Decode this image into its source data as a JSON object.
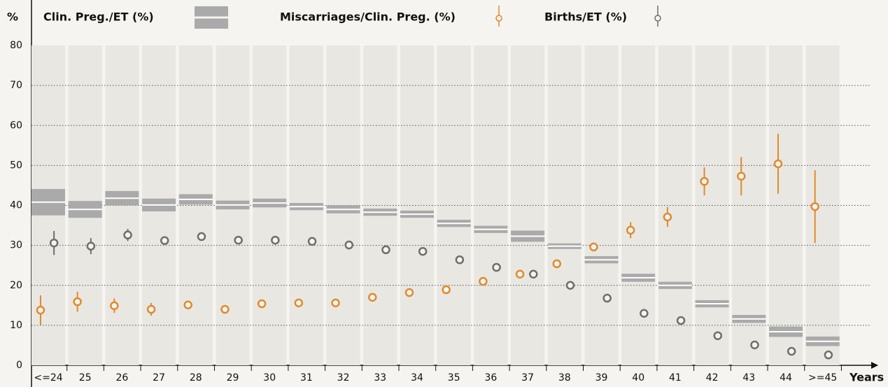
{
  "chart_data": {
    "type": "range",
    "y_label": "%",
    "x_label": "Years",
    "categories": [
      "<=24",
      "25",
      "26",
      "27",
      "28",
      "29",
      "30",
      "31",
      "32",
      "33",
      "34",
      "35",
      "36",
      "37",
      "38",
      "39",
      "40",
      "41",
      "42",
      "43",
      "44",
      ">=45"
    ],
    "ylim": [
      0,
      80
    ],
    "yticks": [
      0,
      10,
      20,
      30,
      40,
      50,
      60,
      70,
      80
    ],
    "grid": true,
    "series": [
      {
        "name": "Clin. Preg./ET (%)",
        "color": "#aaaaaa",
        "style": "box",
        "values": [
          40.8,
          39.0,
          41.8,
          40.1,
          41.5,
          40.1,
          40.6,
          39.7,
          39.0,
          38.3,
          37.8,
          35.5,
          34.0,
          32.3,
          29.8,
          26.4,
          21.9,
          20.0,
          15.4,
          11.6,
          8.4,
          6.0
        ],
        "errors": [
          3.3,
          2.1,
          1.8,
          1.6,
          1.3,
          1.1,
          1.1,
          0.9,
          1.0,
          0.9,
          0.9,
          0.9,
          0.9,
          1.4,
          0.7,
          0.9,
          1.0,
          0.9,
          0.9,
          1.0,
          1.3,
          1.2
        ]
      },
      {
        "name": "Miscarriages/Clin. Preg. (%)",
        "color": "#e08a2e",
        "style": "point",
        "offset": 0.27,
        "values": [
          13.8,
          15.9,
          14.9,
          14.0,
          15.1,
          14.0,
          15.4,
          15.6,
          15.6,
          17.0,
          18.2,
          18.9,
          21.0,
          22.8,
          25.4,
          29.6,
          33.8,
          37.1,
          46.0,
          47.3,
          50.4,
          39.7
        ],
        "errors": [
          3.7,
          2.5,
          1.8,
          1.6,
          1.0,
          0.7,
          0.5,
          0.5,
          0.5,
          0.5,
          0.5,
          0.5,
          0.6,
          0.7,
          1.0,
          1.0,
          2.0,
          2.5,
          3.5,
          4.8,
          7.5,
          9.1
        ]
      },
      {
        "name": "Births/ET (%)",
        "color": "#6e6e6e",
        "style": "point",
        "offset": 0.67,
        "values": [
          30.6,
          29.8,
          32.6,
          31.2,
          32.2,
          31.3,
          31.3,
          31.0,
          30.1,
          28.9,
          28.5,
          26.4,
          24.5,
          22.8,
          20.0,
          16.8,
          13.0,
          11.2,
          7.4,
          5.1,
          3.5,
          2.6
        ],
        "errors": [
          3.0,
          2.0,
          1.5,
          1.0,
          0.5,
          0.5,
          0.5,
          0.5,
          0.5,
          0.5,
          0.5,
          0.5,
          0.5,
          0.5,
          0.5,
          0.4,
          0.4,
          0.4,
          0.3,
          0.3,
          0.3,
          0.3
        ]
      }
    ]
  }
}
